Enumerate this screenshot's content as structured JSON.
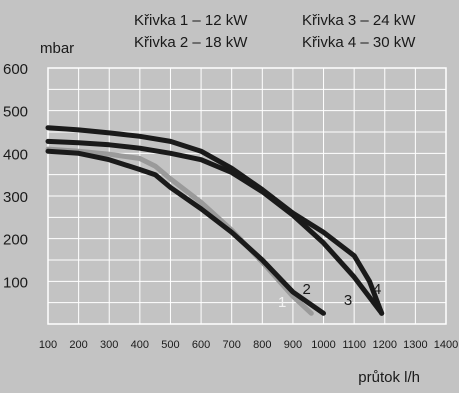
{
  "chart_data": {
    "type": "line",
    "legend": {
      "left": [
        "Křivka 1 – 12 kW",
        "Křivka 2 – 18 kW"
      ],
      "right": [
        "Křivka 3 – 24 kW",
        "Křivka 4 – 30 kW"
      ]
    },
    "ylabel": "mbar",
    "xlabel": "průtok l/h",
    "xlim": [
      100,
      1400
    ],
    "ylim": [
      0,
      600
    ],
    "x_ticks": [
      100,
      200,
      300,
      400,
      500,
      600,
      700,
      800,
      900,
      1000,
      1100,
      1200,
      1300,
      1400
    ],
    "y_ticks": [
      100,
      200,
      300,
      400,
      500,
      600
    ],
    "x_grid_step": 100,
    "y_grid_step": 50,
    "grid": true,
    "colors": {
      "background": "#c3c3c3",
      "plot": "#c3c3c3",
      "grid": "#ffffff",
      "text": "#1a1a1a",
      "series": [
        "#9a9a9a",
        "#1a1a1a",
        "#1a1a1a",
        "#1a1a1a"
      ]
    },
    "series": [
      {
        "name": "1",
        "x": [
          100,
          200,
          300,
          400,
          450,
          500,
          600,
          700,
          800,
          900,
          960
        ],
        "y": [
          410,
          405,
          398,
          388,
          370,
          340,
          285,
          220,
          145,
          65,
          25
        ]
      },
      {
        "name": "2",
        "x": [
          100,
          200,
          300,
          400,
          450,
          500,
          600,
          700,
          800,
          900,
          1000
        ],
        "y": [
          405,
          400,
          385,
          362,
          350,
          320,
          270,
          215,
          150,
          75,
          25
        ]
      },
      {
        "name": "3",
        "x": [
          100,
          200,
          300,
          400,
          500,
          600,
          700,
          800,
          900,
          1000,
          1100,
          1190
        ],
        "y": [
          428,
          425,
          420,
          412,
          400,
          385,
          355,
          310,
          255,
          190,
          110,
          25
        ]
      },
      {
        "name": "4",
        "x": [
          100,
          200,
          300,
          400,
          500,
          600,
          700,
          800,
          900,
          1000,
          1100,
          1150,
          1190
        ],
        "y": [
          460,
          455,
          448,
          440,
          428,
          405,
          365,
          315,
          260,
          215,
          160,
          100,
          25
        ]
      }
    ],
    "series_labels": [
      {
        "text": "1",
        "x": 865,
        "y": 40
      },
      {
        "text": "2",
        "x": 945,
        "y": 70
      },
      {
        "text": "3",
        "x": 1080,
        "y": 45
      },
      {
        "text": "4",
        "x": 1175,
        "y": 70
      }
    ]
  }
}
